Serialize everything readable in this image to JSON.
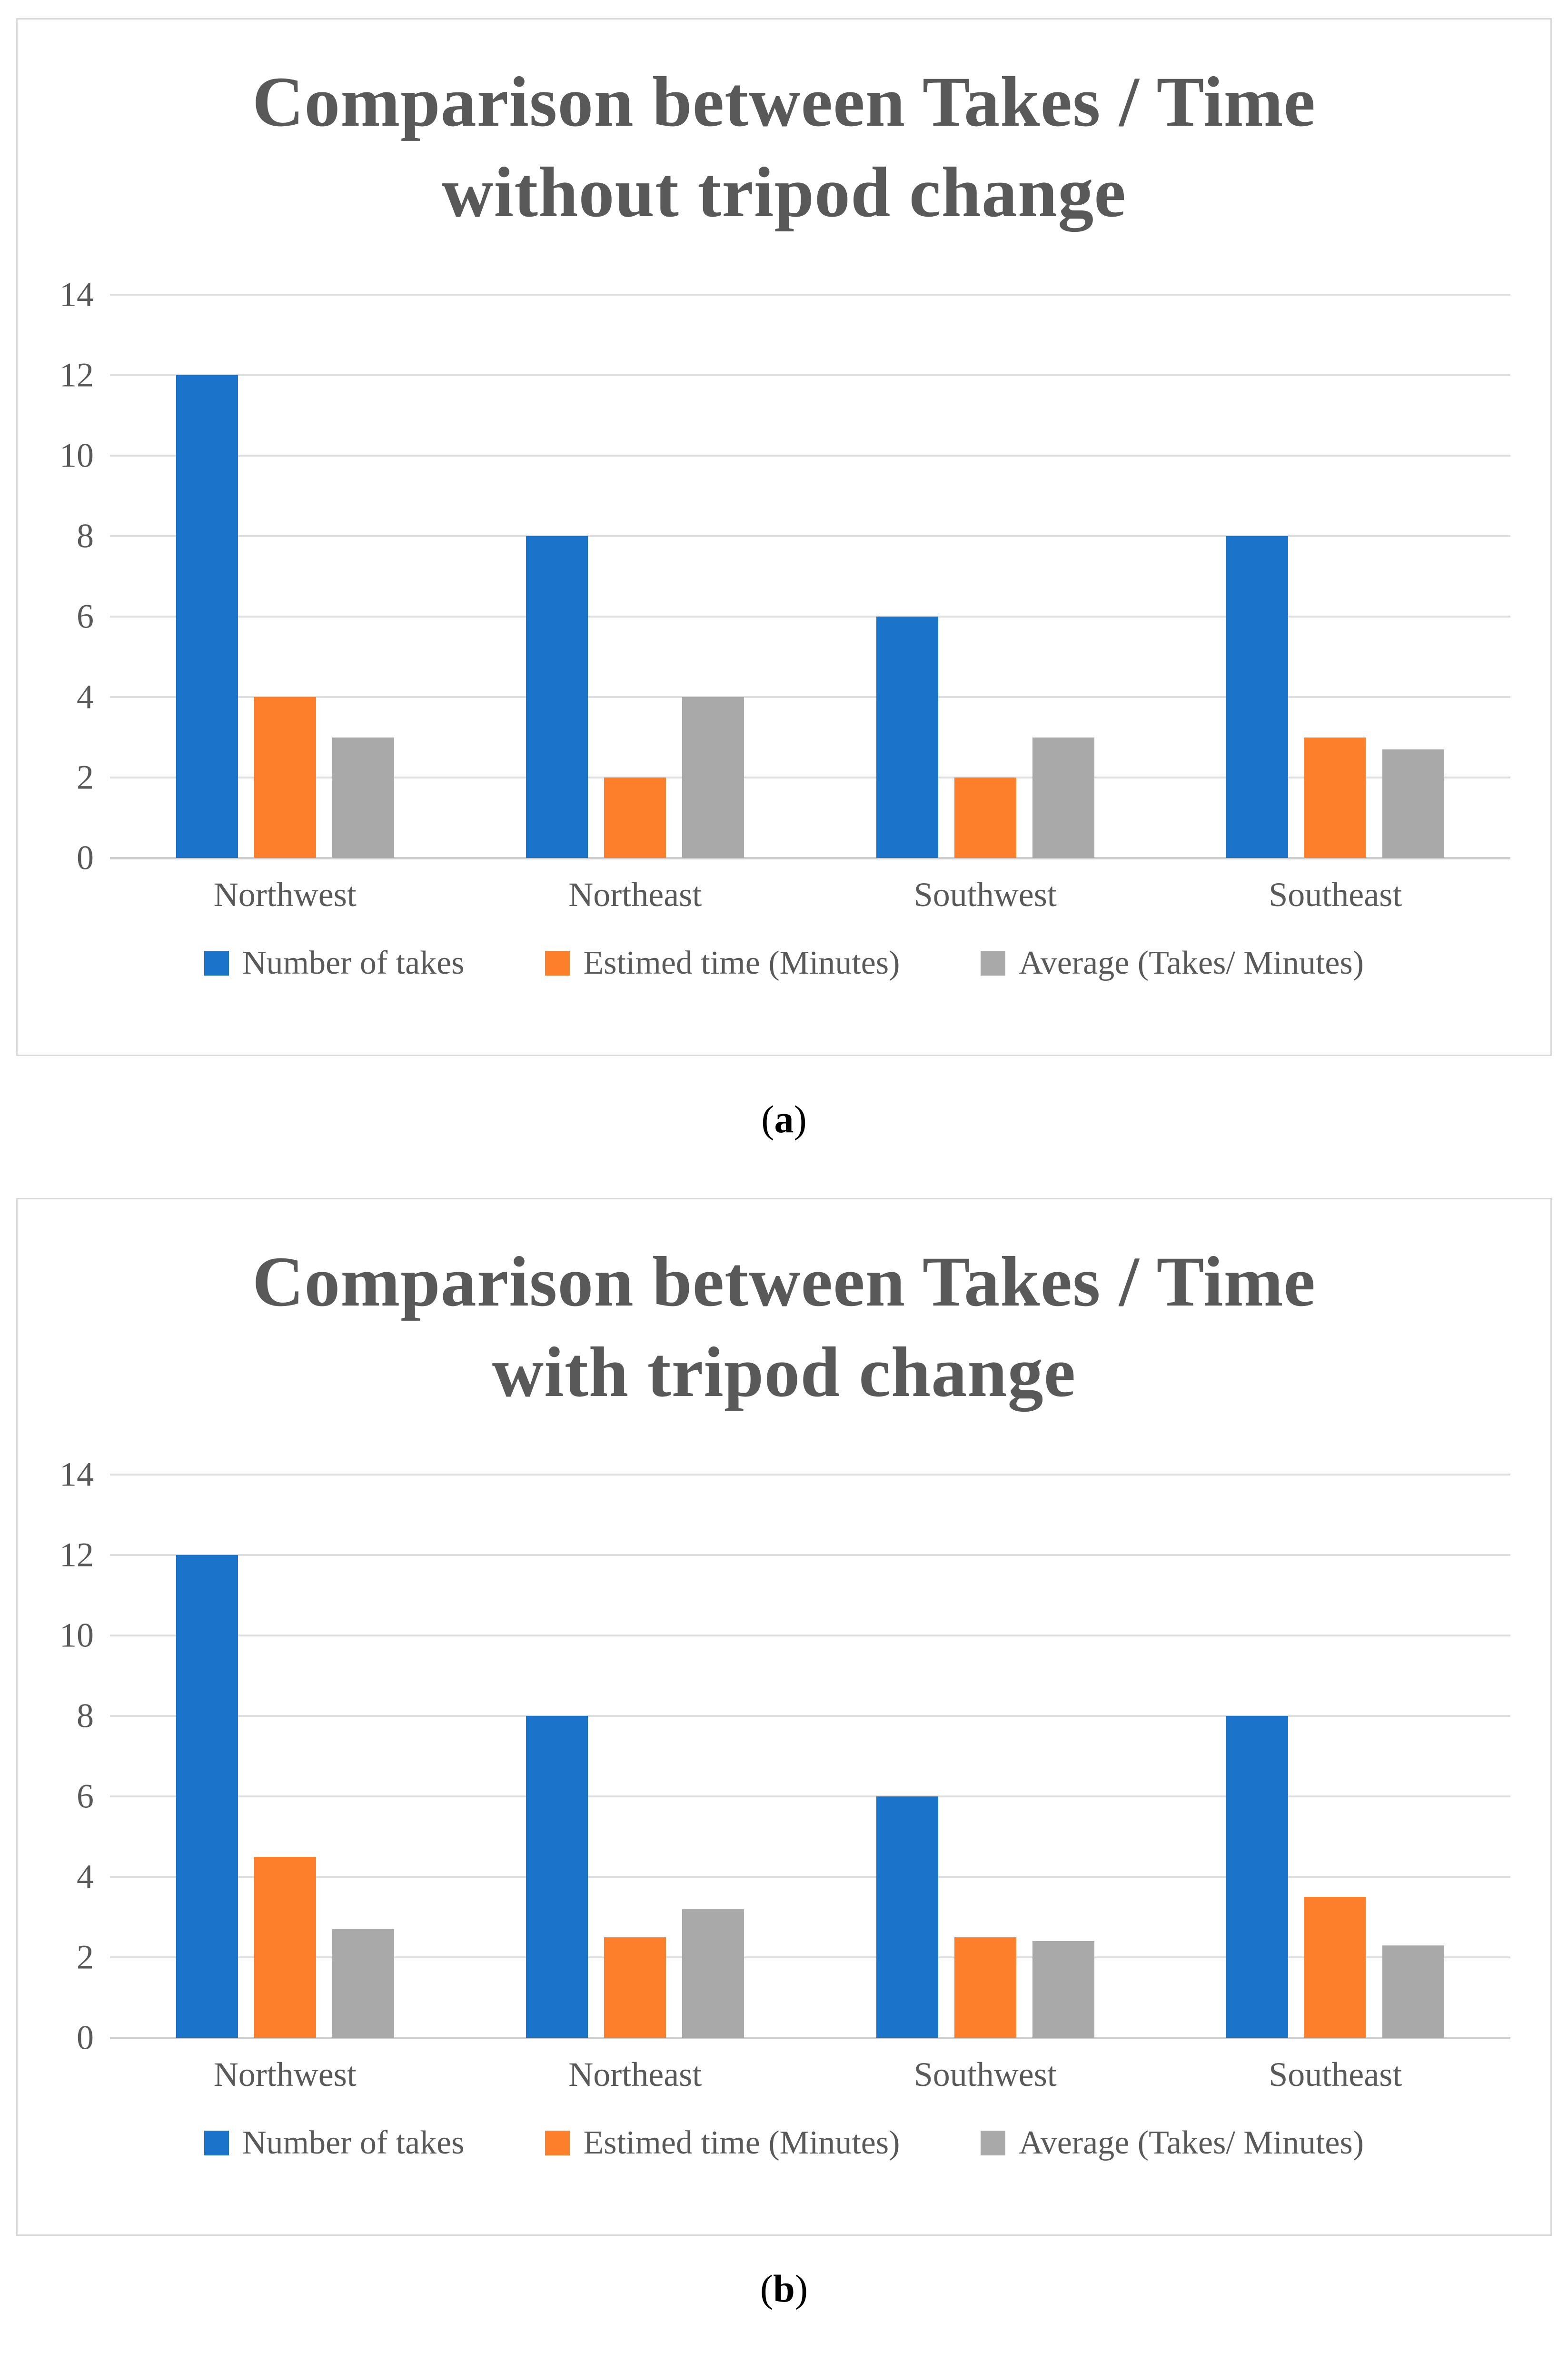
{
  "figure": {
    "captions": [
      {
        "open": "(",
        "letter": "a",
        "close": ")"
      },
      {
        "open": "(",
        "letter": "b",
        "close": ")"
      }
    ]
  },
  "styles": {
    "series_colors": {
      "blue": "#1b74c9",
      "orange": "#fd7e2b",
      "gray": "#a9a9a9"
    },
    "grid_color": "#dedede",
    "axis_color": "#cdcdcd",
    "text_color": "#595959",
    "border_color": "#d9d9d9"
  },
  "chart_data": [
    {
      "type": "bar",
      "title": "Comparison between Takes / Time without tripod change",
      "title_lines": [
        "Comparison between Takes / Time",
        "without tripod change"
      ],
      "categories": [
        "Northwest",
        "Northeast",
        "Southwest",
        "Southeast"
      ],
      "series": [
        {
          "name": "Number of takes",
          "color": "#1b74c9",
          "values": [
            12,
            8,
            6,
            8
          ]
        },
        {
          "name": "Estimed time (Minutes)",
          "color": "#fd7e2b",
          "values": [
            4,
            2,
            2,
            3
          ]
        },
        {
          "name": "Average (Takes/ Minutes)",
          "color": "#a9a9a9",
          "values": [
            3,
            4,
            3,
            2.7
          ]
        }
      ],
      "ylim": [
        0,
        14
      ],
      "yticks": [
        0,
        2,
        4,
        6,
        8,
        10,
        12,
        14
      ],
      "grid": true,
      "legend_position": "bottom"
    },
    {
      "type": "bar",
      "title": "Comparison between Takes / Time with tripod change",
      "title_lines": [
        "Comparison between Takes / Time",
        "with tripod change"
      ],
      "categories": [
        "Northwest",
        "Northeast",
        "Southwest",
        "Southeast"
      ],
      "series": [
        {
          "name": "Number of takes",
          "color": "#1b74c9",
          "values": [
            12,
            8,
            6,
            8
          ]
        },
        {
          "name": "Estimed time (Minutes)",
          "color": "#fd7e2b",
          "values": [
            4.5,
            2.5,
            2.5,
            3.5
          ]
        },
        {
          "name": "Average (Takes/ Minutes)",
          "color": "#a9a9a9",
          "values": [
            2.7,
            3.2,
            2.4,
            2.3
          ]
        }
      ],
      "ylim": [
        0,
        14
      ],
      "yticks": [
        0,
        2,
        4,
        6,
        8,
        10,
        12,
        14
      ],
      "grid": true,
      "legend_position": "bottom"
    }
  ]
}
